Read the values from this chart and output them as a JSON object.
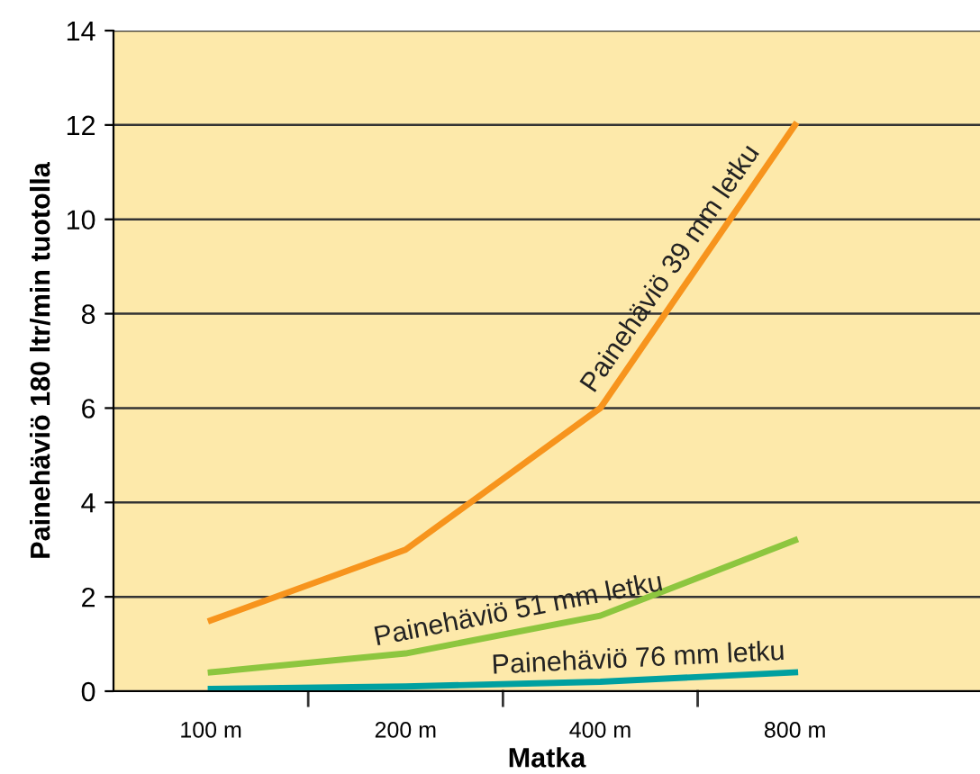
{
  "chart_data": {
    "type": "line",
    "xlabel": "Matka",
    "ylabel": "Painehäviö 180 ltr/min tuotolla",
    "categories": [
      "100 m",
      "200 m",
      "400 m",
      "800 m"
    ],
    "series": [
      {
        "name": "Painehäviö 39 mm letku",
        "color": "#f7941d",
        "values": [
          1.5,
          3,
          6,
          12
        ]
      },
      {
        "name": "Painehäviö 51 mm letku",
        "color": "#8dc63f",
        "values": [
          0.4,
          0.8,
          1.6,
          3.2
        ]
      },
      {
        "name": "Painehäviö 76 mm letku",
        "color": "#00a0a0",
        "values": [
          0.05,
          0.1,
          0.2,
          0.4
        ]
      }
    ],
    "ylim": [
      0,
      14
    ],
    "yticks": [
      0,
      2,
      4,
      6,
      8,
      10,
      12,
      14
    ],
    "grid": "y",
    "legend": false,
    "marker": "none",
    "line_style": "solid"
  }
}
